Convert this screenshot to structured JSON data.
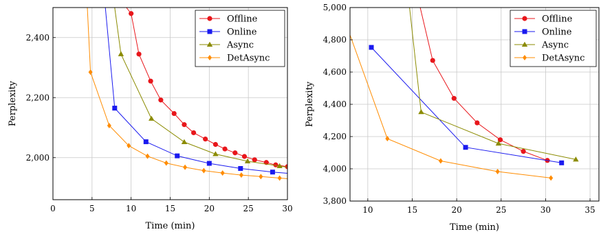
{
  "chart_data": [
    {
      "type": "line",
      "xlabel": "Time (min)",
      "ylabel": "Perplexity",
      "xlim": [
        0,
        30
      ],
      "ylim": [
        1860,
        2500
      ],
      "xticks": [
        0,
        5,
        10,
        15,
        20,
        25,
        30
      ],
      "xtick_labels": [
        "0",
        "5",
        "10",
        "15",
        "20",
        "25",
        "30"
      ],
      "yticks": [
        2000,
        2200,
        2400
      ],
      "ytick_labels": [
        "2,000",
        "2,200",
        "2,400"
      ],
      "grid": true,
      "legend_position": "top-right",
      "series": [
        {
          "name": "Offline",
          "color": "#e8161b",
          "marker": "circle",
          "x": [
            10.0,
            11.0,
            12.5,
            13.0,
            13.5,
            15.5,
            16.8,
            18.0,
            19.5,
            20.8,
            22.0,
            23.0,
            24.3,
            25.5,
            27.0,
            28.5,
            30.0
          ],
          "y": [
            2480,
            2480,
            2345,
            2255,
            2192,
            2147,
            2110,
            2083,
            2062,
            2044,
            2029,
            2016,
            2004,
            1993,
            1984,
            1976,
            1970
          ],
          "markers": [
            [
              10.0,
              2480
            ],
            [
              11.0,
              2345
            ],
            [
              12.5,
              2255
            ],
            [
              13.8,
              2192
            ],
            [
              15.5,
              2147
            ],
            [
              16.8,
              2110
            ],
            [
              18.0,
              2083
            ],
            [
              19.5,
              2062
            ],
            [
              20.8,
              2044
            ],
            [
              22.0,
              2029
            ],
            [
              23.3,
              2016
            ],
            [
              24.5,
              2004
            ],
            [
              25.8,
              1993
            ],
            [
              27.3,
              1984
            ],
            [
              28.5,
              1976
            ],
            [
              30.0,
              1970
            ]
          ],
          "curve_start": [
            9.4,
            2500
          ]
        },
        {
          "name": "Online",
          "color": "#1a1aef",
          "marker": "square",
          "markers": [
            [
              7.9,
              2165
            ],
            [
              11.9,
              2053
            ],
            [
              15.9,
              2006
            ],
            [
              20.0,
              1981
            ],
            [
              24.0,
              1964
            ],
            [
              28.1,
              1952
            ]
          ],
          "curve_start": [
            6.7,
            2500
          ],
          "curve_end": [
            30.0,
            1948
          ]
        },
        {
          "name": "Async",
          "color": "#8b8b00",
          "marker": "triangle",
          "markers": [
            [
              8.7,
              2345
            ],
            [
              12.6,
              2130
            ],
            [
              16.8,
              2052
            ],
            [
              20.8,
              2012
            ],
            [
              24.9,
              1988
            ],
            [
              29.0,
              1972
            ]
          ],
          "curve_start": [
            7.9,
            2500
          ],
          "curve_end": [
            30.0,
            1968
          ]
        },
        {
          "name": "DetAsync",
          "color": "#ff8c00",
          "marker": "diamond",
          "markers": [
            [
              4.8,
              2285
            ],
            [
              7.2,
              2107
            ],
            [
              9.7,
              2040
            ],
            [
              12.1,
              2005
            ],
            [
              14.5,
              1982
            ],
            [
              16.9,
              1968
            ],
            [
              19.3,
              1957
            ],
            [
              21.7,
              1949
            ],
            [
              24.1,
              1942
            ],
            [
              26.6,
              1937
            ],
            [
              29.0,
              1932
            ]
          ],
          "curve_start": [
            4.4,
            2500
          ],
          "curve_end": [
            30.0,
            1930
          ]
        }
      ]
    },
    {
      "type": "line",
      "xlabel": "Time (min)",
      "ylabel": "Perplexity",
      "xlim": [
        8,
        36
      ],
      "ylim": [
        3800,
        5000
      ],
      "xticks": [
        10,
        15,
        20,
        25,
        30,
        35
      ],
      "xtick_labels": [
        "10",
        "15",
        "20",
        "25",
        "30",
        "35"
      ],
      "yticks": [
        3800,
        4000,
        4200,
        4400,
        4600,
        4800,
        5000
      ],
      "ytick_labels": [
        "3,800",
        "4,000",
        "4,200",
        "4,400",
        "4,600",
        "4,800",
        "5,000"
      ],
      "grid": true,
      "legend_position": "top-right",
      "series": [
        {
          "name": "Offline",
          "color": "#e8161b",
          "marker": "circle",
          "markers": [
            [
              17.3,
              4672
            ],
            [
              19.7,
              4437
            ],
            [
              22.3,
              4285
            ],
            [
              24.9,
              4180
            ],
            [
              27.5,
              4108
            ],
            [
              30.2,
              4052
            ]
          ],
          "curve_start": [
            15.9,
            5000
          ]
        },
        {
          "name": "Online",
          "color": "#1a1aef",
          "marker": "square",
          "markers": [
            [
              10.4,
              4753
            ],
            [
              21.0,
              4133
            ],
            [
              31.8,
              4037
            ]
          ]
        },
        {
          "name": "Async",
          "color": "#8b8b00",
          "marker": "triangle",
          "markers": [
            [
              16.0,
              4352
            ],
            [
              24.7,
              4157
            ],
            [
              33.4,
              4058
            ]
          ],
          "curve_start": [
            14.7,
            5000
          ]
        },
        {
          "name": "DetAsync",
          "color": "#ff8c00",
          "marker": "diamond",
          "markers": [
            [
              12.2,
              4187
            ],
            [
              18.2,
              4049
            ],
            [
              24.6,
              3983
            ],
            [
              30.6,
              3943
            ]
          ],
          "curve_start": [
            8.0,
            4830
          ]
        }
      ]
    }
  ]
}
